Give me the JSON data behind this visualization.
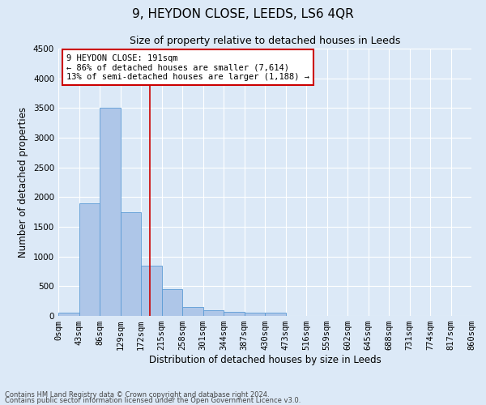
{
  "title": "9, HEYDON CLOSE, LEEDS, LS6 4QR",
  "subtitle": "Size of property relative to detached houses in Leeds",
  "xlabel": "Distribution of detached houses by size in Leeds",
  "ylabel": "Number of detached properties",
  "bin_labels": [
    "0sqm",
    "43sqm",
    "86sqm",
    "129sqm",
    "172sqm",
    "215sqm",
    "258sqm",
    "301sqm",
    "344sqm",
    "387sqm",
    "430sqm",
    "473sqm",
    "516sqm",
    "559sqm",
    "602sqm",
    "645sqm",
    "688sqm",
    "731sqm",
    "774sqm",
    "817sqm",
    "860sqm"
  ],
  "bar_heights": [
    50,
    1900,
    3500,
    1750,
    850,
    450,
    155,
    100,
    75,
    55,
    50,
    0,
    0,
    0,
    0,
    0,
    0,
    0,
    0,
    0
  ],
  "bar_color": "#aec6e8",
  "bar_edge_color": "#5b9bd5",
  "vline_x": 4.44,
  "vline_color": "#cc0000",
  "annotation_text": "9 HEYDON CLOSE: 191sqm\n← 86% of detached houses are smaller (7,614)\n13% of semi-detached houses are larger (1,188) →",
  "annotation_box_color": "#ffffff",
  "annotation_box_edge": "#cc0000",
  "ylim": [
    0,
    4500
  ],
  "yticks": [
    0,
    500,
    1000,
    1500,
    2000,
    2500,
    3000,
    3500,
    4000,
    4500
  ],
  "footer_line1": "Contains HM Land Registry data © Crown copyright and database right 2024.",
  "footer_line2": "Contains public sector information licensed under the Open Government Licence v3.0.",
  "bg_color": "#dce9f7",
  "plot_bg_color": "#dce9f7",
  "grid_color": "#ffffff",
  "title_fontsize": 11,
  "subtitle_fontsize": 9,
  "axis_label_fontsize": 8.5,
  "tick_fontsize": 7.5,
  "annotation_fontsize": 7.5,
  "footer_fontsize": 6
}
